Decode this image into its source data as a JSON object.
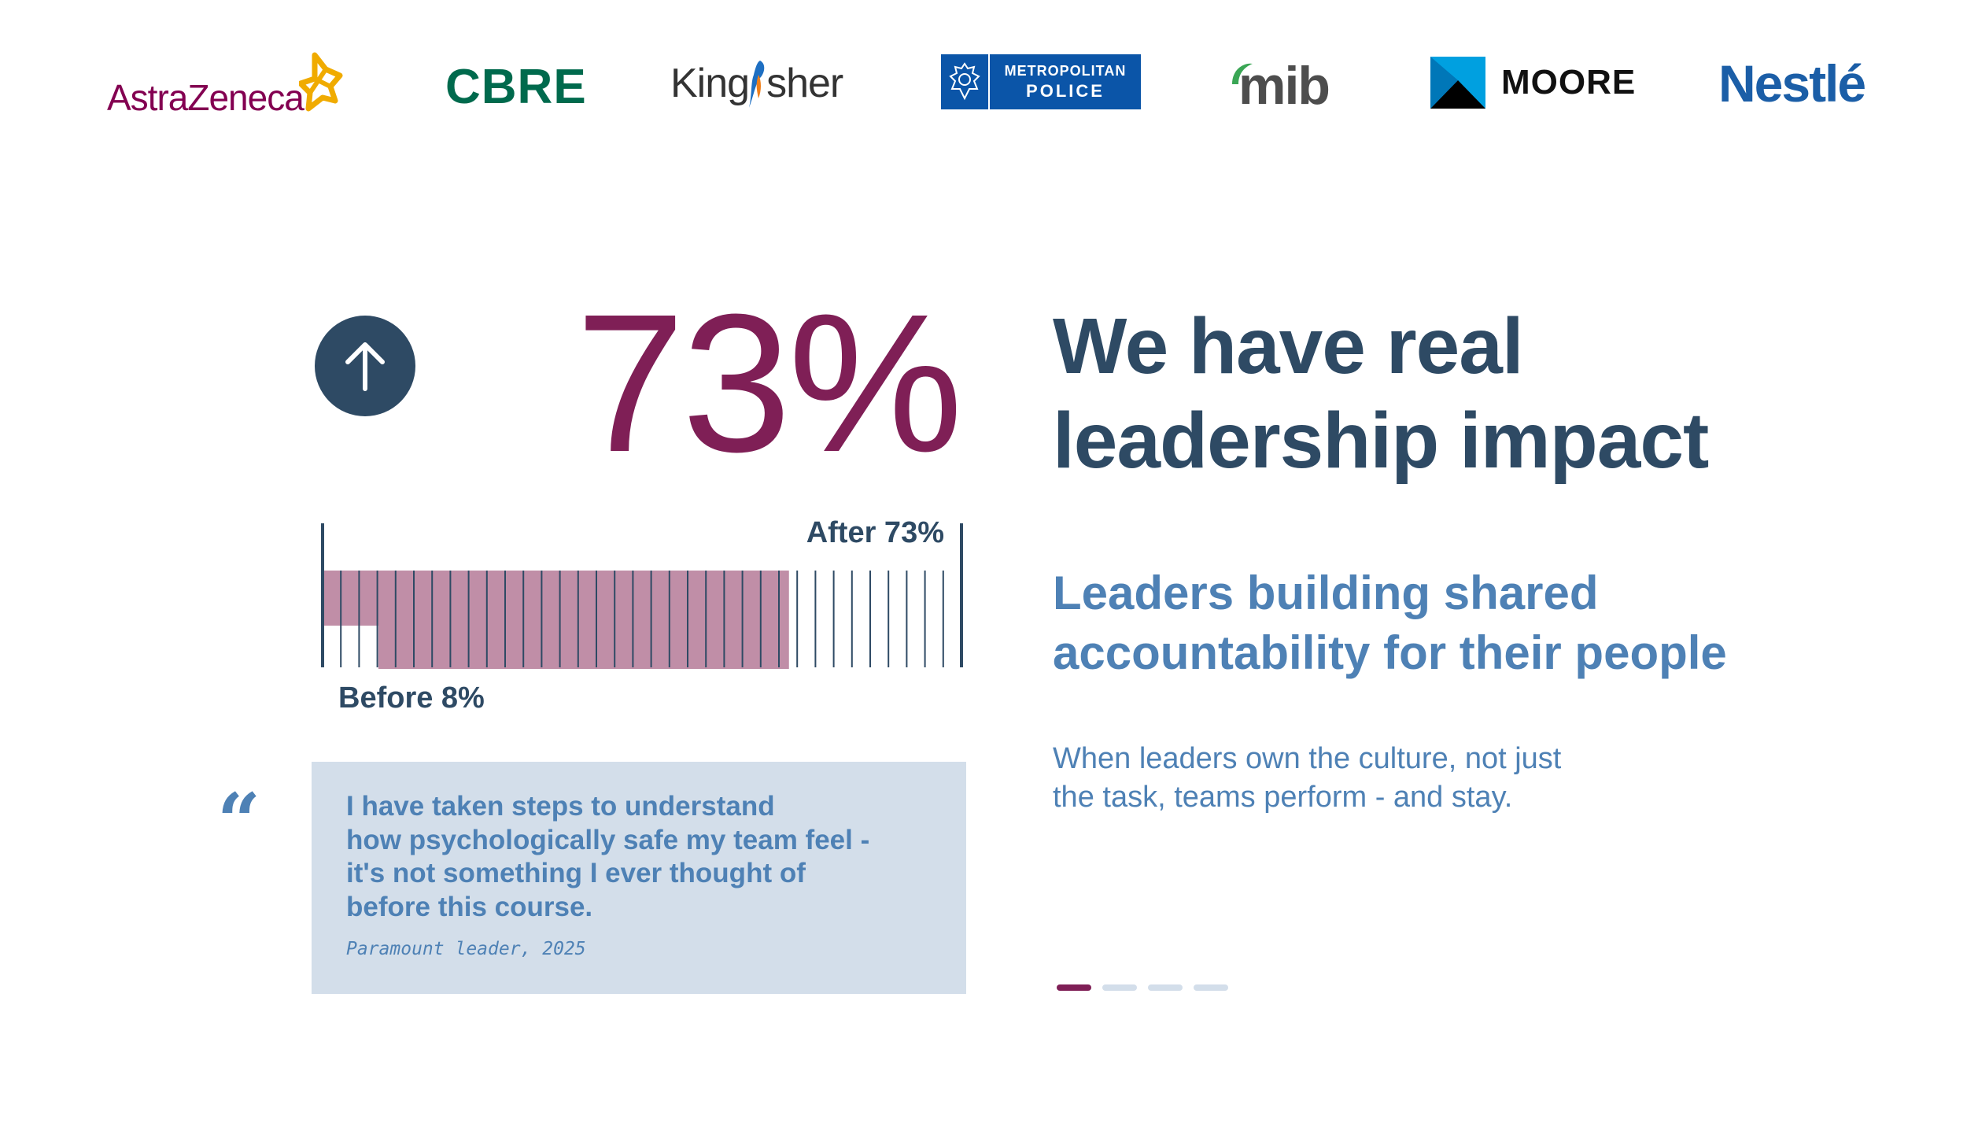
{
  "logos": {
    "astrazeneca": "AstraZeneca",
    "cbre": "CBRE",
    "kingfisher_left": "King",
    "kingfisher_right": "sher",
    "met_police_line1": "METROPOLITAN",
    "met_police_line2": "POLICE",
    "mib": "mib",
    "moore": "MOORE",
    "nestle": "Nestlé"
  },
  "stat": {
    "icon": "arrow-up-icon",
    "value": "73%"
  },
  "chart_data": {
    "type": "bar",
    "categories": [
      "Before",
      "After"
    ],
    "values": [
      8,
      73
    ],
    "ylim": [
      0,
      100
    ],
    "labels": {
      "before": "Before 8%",
      "after": "After 73%"
    },
    "colors": {
      "fill": "#c08ea7",
      "lines": "#2e4a64"
    }
  },
  "headline": {
    "line1": "We have real",
    "line2": "leadership impact"
  },
  "subhead": {
    "line1": "Leaders building shared",
    "line2": "accountability for their people"
  },
  "body": {
    "line1": "When leaders own the culture, not just",
    "line2": "the task, teams perform - and stay."
  },
  "quote": {
    "mark": "“",
    "line1": "I have taken steps to understand",
    "line2": "how psychologically safe my team feel -",
    "line3": "it's not something I ever thought of",
    "line4": "before this course.",
    "attribution": "Paramount leader, 2025"
  },
  "pager": {
    "count": 4,
    "active_index": 0
  },
  "colors": {
    "navy": "#2e4a64",
    "plum": "#7f1f56",
    "blue": "#4e81b5",
    "light_blue": "#d3deea"
  }
}
